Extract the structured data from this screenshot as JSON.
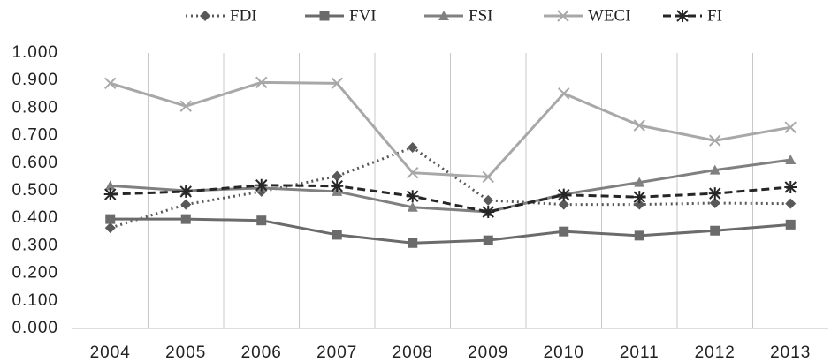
{
  "chart_data": {
    "type": "line",
    "categories": [
      "2004",
      "2005",
      "2006",
      "2007",
      "2008",
      "2009",
      "2010",
      "2011",
      "2012",
      "2013"
    ],
    "series": [
      {
        "name": "FDI",
        "color": "#595959",
        "dash": "dotted",
        "marker": "diamond",
        "values": [
          0.365,
          0.45,
          0.497,
          0.553,
          0.657,
          0.465,
          0.45,
          0.45,
          0.455,
          0.453
        ]
      },
      {
        "name": "FVI",
        "color": "#6b6b6b",
        "dash": "solid",
        "marker": "square",
        "values": [
          0.397,
          0.397,
          0.392,
          0.34,
          0.31,
          0.32,
          0.352,
          0.337,
          0.355,
          0.377
        ]
      },
      {
        "name": "FSI",
        "color": "#808080",
        "dash": "solid",
        "marker": "triangle",
        "values": [
          0.518,
          0.5,
          0.51,
          0.497,
          0.44,
          0.423,
          0.487,
          0.53,
          0.575,
          0.612
        ]
      },
      {
        "name": "WECI",
        "color": "#a8a8a8",
        "dash": "solid",
        "marker": "x",
        "values": [
          0.89,
          0.807,
          0.893,
          0.89,
          0.565,
          0.55,
          0.853,
          0.737,
          0.682,
          0.73
        ]
      },
      {
        "name": "FI",
        "color": "#262626",
        "dash": "dashed",
        "marker": "star",
        "values": [
          0.487,
          0.497,
          0.52,
          0.517,
          0.48,
          0.423,
          0.485,
          0.477,
          0.49,
          0.513
        ]
      }
    ],
    "ylim": [
      0,
      1
    ],
    "yticks": [
      {
        "value": 0,
        "label": "0.000"
      },
      {
        "value": 0.1,
        "label": "0.100"
      },
      {
        "value": 0.2,
        "label": "0.200"
      },
      {
        "value": 0.3,
        "label": "0.300"
      },
      {
        "value": 0.4,
        "label": "0.400"
      },
      {
        "value": 0.5,
        "label": "0.500"
      },
      {
        "value": 0.6,
        "label": "0.600"
      },
      {
        "value": 0.7,
        "label": "0.700"
      },
      {
        "value": 0.8,
        "label": "0.800"
      },
      {
        "value": 0.9,
        "label": "0.900"
      },
      {
        "value": 1,
        "label": "1.000"
      }
    ],
    "grid": "vertical",
    "legend": "top"
  }
}
